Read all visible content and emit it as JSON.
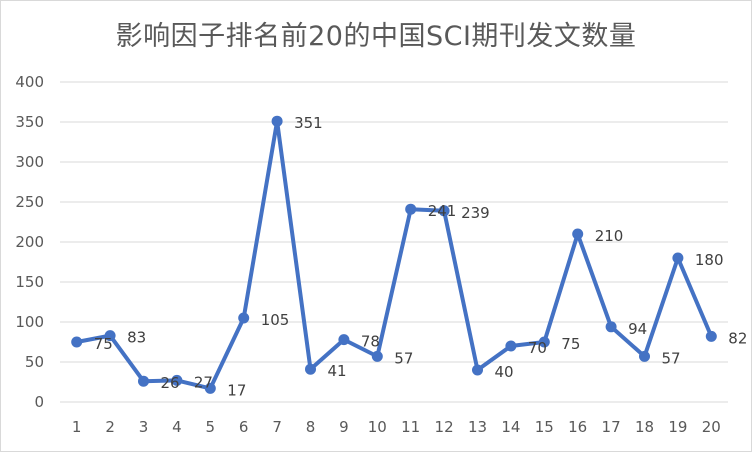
{
  "chart_data": {
    "type": "line",
    "title": "影响因子排名前20的中国SCI期刊发文数量",
    "categories": [
      "1",
      "2",
      "3",
      "4",
      "5",
      "6",
      "7",
      "8",
      "9",
      "10",
      "11",
      "12",
      "13",
      "14",
      "15",
      "16",
      "17",
      "18",
      "19",
      "20"
    ],
    "values": [
      75,
      83,
      26,
      27,
      17,
      105,
      351,
      41,
      78,
      57,
      241,
      239,
      40,
      70,
      75,
      210,
      94,
      57,
      180,
      82
    ],
    "y_ticks": [
      "0",
      "50",
      "100",
      "150",
      "200",
      "250",
      "300",
      "350",
      "400"
    ],
    "ylim": [
      0,
      400
    ],
    "grid": true,
    "legend": "none",
    "colors": {
      "line": "#4472c4",
      "grid": "#d9d9d9",
      "text": "#595959"
    }
  }
}
